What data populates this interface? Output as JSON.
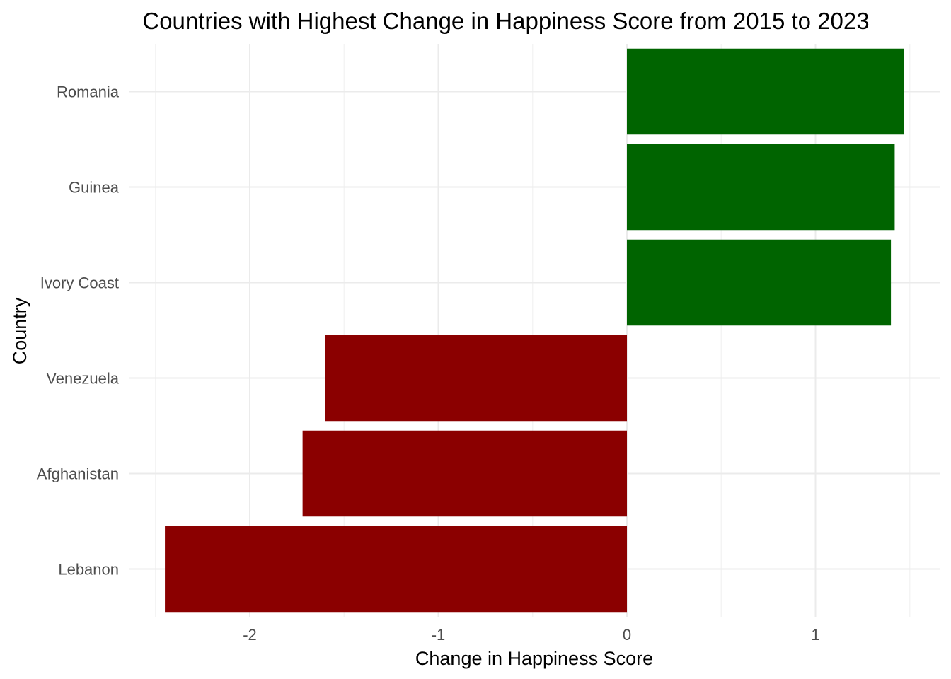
{
  "chart_data": {
    "type": "bar",
    "orientation": "horizontal",
    "title": "Countries with Highest Change in Happiness Score from 2015 to 2023",
    "xlabel": "Change in Happiness Score",
    "ylabel": "Country",
    "xlim": [
      -2.5,
      1.5
    ],
    "xticks": [
      -2,
      -1,
      0,
      1
    ],
    "xtick_labels": [
      "-2",
      "-1",
      "0",
      "1"
    ],
    "categories": [
      "Romania",
      "Guinea",
      "Ivory Coast",
      "Venezuela",
      "Afghanistan",
      "Lebanon"
    ],
    "values": [
      1.47,
      1.42,
      1.4,
      -1.6,
      -1.72,
      -2.45
    ],
    "colors": {
      "positive": "#006400",
      "negative": "#8b0000"
    },
    "grid": true,
    "legend": "none"
  }
}
